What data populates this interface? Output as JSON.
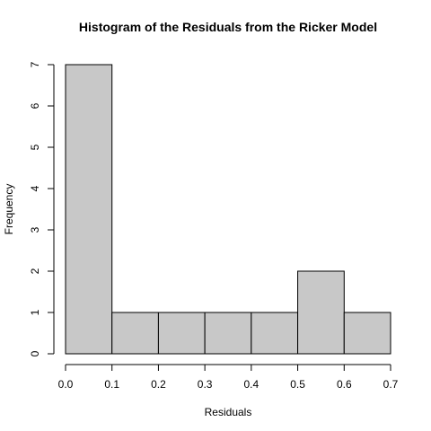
{
  "chart_data": {
    "type": "bar",
    "title": "Histogram of the Residuals from the Ricker Model",
    "xlabel": "Residuals",
    "ylabel": "Frequency",
    "bins": [
      {
        "x0": 0.0,
        "x1": 0.1,
        "count": 7
      },
      {
        "x0": 0.1,
        "x1": 0.2,
        "count": 1
      },
      {
        "x0": 0.2,
        "x1": 0.3,
        "count": 1
      },
      {
        "x0": 0.3,
        "x1": 0.4,
        "count": 1
      },
      {
        "x0": 0.4,
        "x1": 0.5,
        "count": 1
      },
      {
        "x0": 0.5,
        "x1": 0.6,
        "count": 2
      },
      {
        "x0": 0.6,
        "x1": 0.7,
        "count": 1
      }
    ],
    "xlim": [
      0.0,
      0.7
    ],
    "ylim": [
      0,
      7
    ],
    "xticks": [
      "0.0",
      "0.1",
      "0.2",
      "0.3",
      "0.4",
      "0.5",
      "0.6",
      "0.7"
    ],
    "yticks": [
      "0",
      "1",
      "2",
      "3",
      "4",
      "5",
      "6",
      "7"
    ],
    "grid": false,
    "colors": {
      "bar_fill": "#c8c8c8",
      "bar_stroke": "#000000"
    }
  }
}
